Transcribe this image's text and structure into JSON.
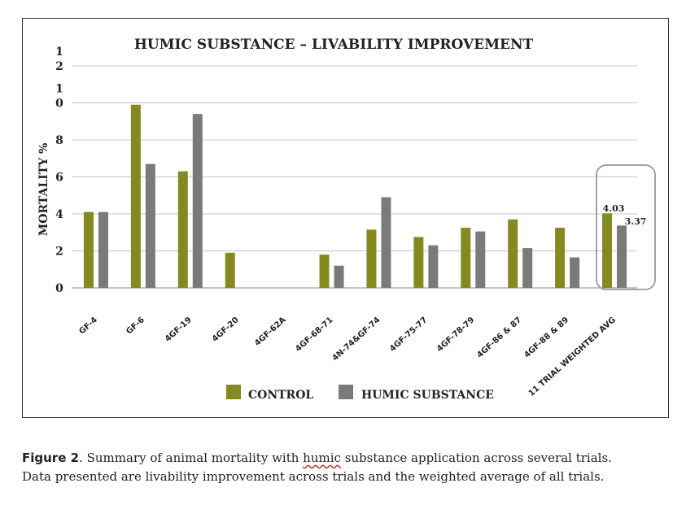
{
  "chart_data": {
    "type": "bar",
    "title": "HUMIC SUBSTANCE – LIVABILITY IMPROVEMENT",
    "ylabel": "MORTALITY %",
    "xlabel": "",
    "ylim": [
      0,
      12
    ],
    "ytick_labels": [
      "0",
      "2",
      "4",
      "6",
      "8",
      "1\n0",
      "1\n2"
    ],
    "categories": [
      "GF-4",
      "GF-6",
      "4GF-19",
      "4GF-20",
      "4GF-62A",
      "4GF-68-71",
      "4N-74&GF-74",
      "4GF-75-77",
      "4GF-78-79",
      "4GF-86 & 87",
      "4GF-88 & 89",
      "11 TRIAL WEIGHTED AVG"
    ],
    "series": [
      {
        "name": "CONTROL",
        "color": "#848a1f",
        "values": [
          4.1,
          9.9,
          6.3,
          1.9,
          0,
          1.8,
          3.15,
          2.75,
          3.25,
          3.7,
          3.25,
          4.03
        ]
      },
      {
        "name": "HUMIC SUBSTANCE",
        "color": "#7a7a7a",
        "values": [
          4.1,
          6.7,
          9.4,
          0,
          0,
          1.2,
          4.9,
          2.3,
          3.05,
          2.15,
          1.65,
          3.37
        ]
      }
    ],
    "data_labels": {
      "control": "4.03",
      "humic": "3.37"
    },
    "grid": true,
    "legend_position": "bottom"
  },
  "caption": {
    "figure_label": "Figure 2",
    "text_before": ". Summary of animal mortality with ",
    "misspelled_word": "humic",
    "text_after": " substance application across several trials.",
    "line2": "Data presented are livability improvement across trials and the weighted average of all trials."
  }
}
